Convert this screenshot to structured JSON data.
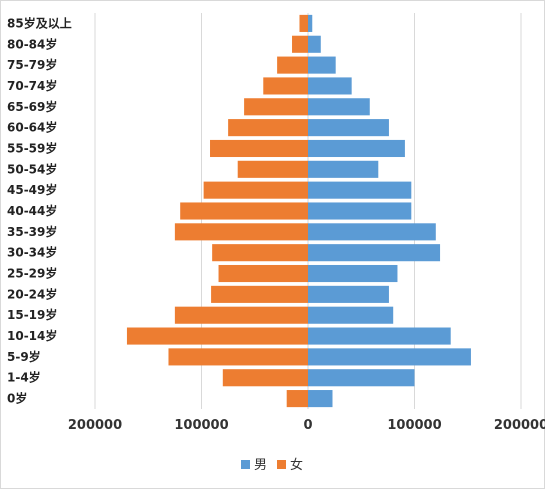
{
  "chart_data": {
    "type": "bar",
    "orientation": "horizontal",
    "layout": "population-pyramid",
    "categories": [
      "0岁",
      "1-4岁",
      "5-9岁",
      "10-14岁",
      "15-19岁",
      "20-24岁",
      "25-29岁",
      "30-34岁",
      "35-39岁",
      "40-44岁",
      "45-49岁",
      "50-54岁",
      "55-59岁",
      "60-64岁",
      "65-69岁",
      "70-74岁",
      "75-79岁",
      "80-84岁",
      "85岁及以上"
    ],
    "series": [
      {
        "name": "男",
        "color": "#5b9bd5",
        "side": "right",
        "values": [
          23000,
          100000,
          153000,
          134000,
          80000,
          76000,
          84000,
          124000,
          120000,
          97000,
          97000,
          66000,
          91000,
          76000,
          58000,
          41000,
          26000,
          12000,
          4000
        ]
      },
      {
        "name": "女",
        "color": "#ed7d31",
        "side": "left",
        "values": [
          20000,
          80000,
          131000,
          170000,
          125000,
          91000,
          84000,
          90000,
          125000,
          120000,
          98000,
          66000,
          92000,
          75000,
          60000,
          42000,
          29000,
          15000,
          8000
        ]
      }
    ],
    "xlim": [
      -200000,
      200000
    ],
    "x_ticks": [
      -200000,
      -100000,
      0,
      100000,
      200000
    ],
    "x_tick_labels": [
      "200000",
      "100000",
      "0",
      "100000",
      "200000"
    ],
    "grid": "vertical",
    "legend": "bottom"
  }
}
